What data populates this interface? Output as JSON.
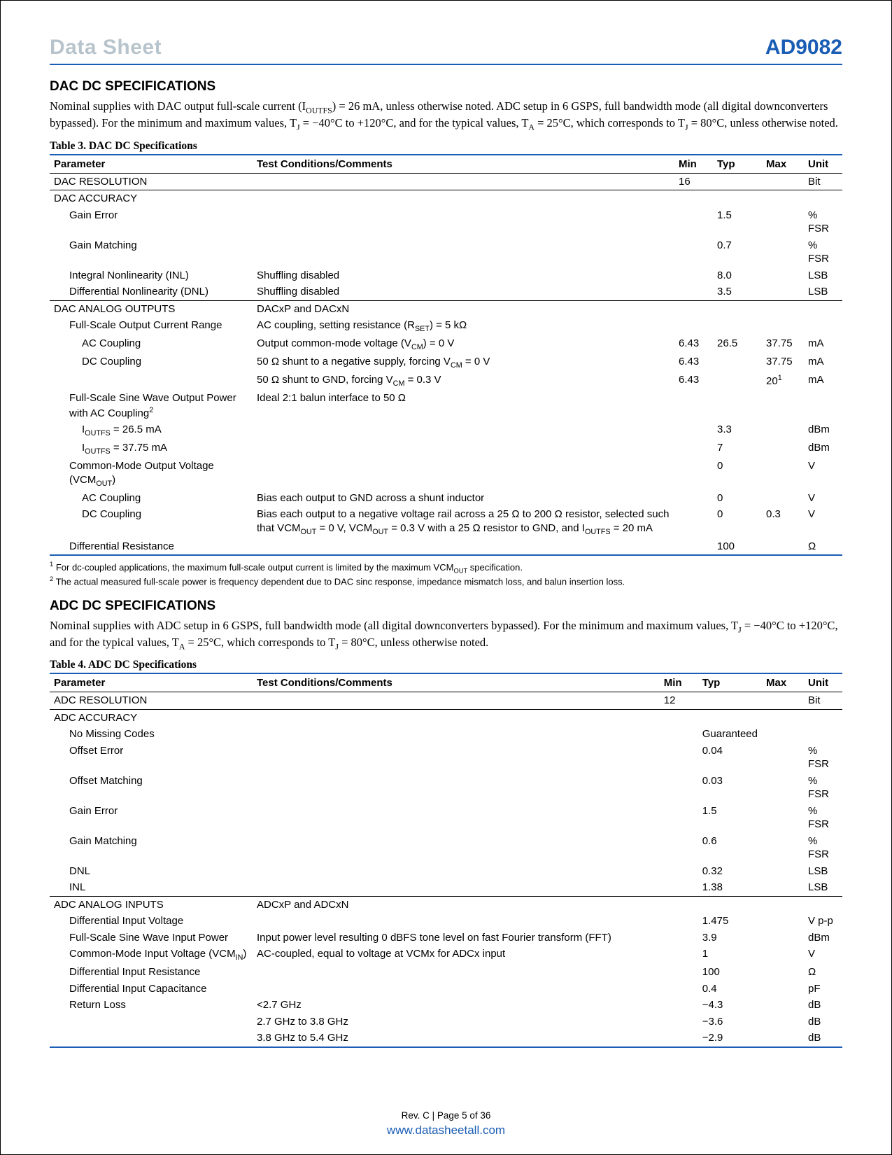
{
  "header": {
    "left": "Data Sheet",
    "right": "AD9082"
  },
  "section1": {
    "title": "DAC DC SPECIFICATIONS",
    "intro_html": "Nominal supplies with DAC output full-scale current (I<span class='sub'>OUTFS</span>) = 26 mA, unless otherwise noted. ADC setup in 6 GSPS, full bandwidth mode (all digital downconverters bypassed). For the minimum and maximum values, T<span class='sub'>J</span> = −40°C to +120°C, and for the typical values, T<span class='sub'>A</span> = 25°C, which corresponds to T<span class='sub'>J</span> = 80°C, unless otherwise noted.",
    "table_title": "Table 3. DAC DC Specifications",
    "columns": [
      "Parameter",
      "Test Conditions/Comments",
      "Min",
      "Typ",
      "Max",
      "Unit"
    ],
    "rows": [
      {
        "sep": true,
        "param": "DAC RESOLUTION",
        "cond": "",
        "min": "16",
        "typ": "",
        "max": "",
        "unit": "Bit",
        "ind": 0
      },
      {
        "sep": true,
        "param": "DAC ACCURACY",
        "cond": "",
        "min": "",
        "typ": "",
        "max": "",
        "unit": "",
        "ind": 0
      },
      {
        "param": "Gain Error",
        "cond": "",
        "min": "",
        "typ": "1.5",
        "max": "",
        "unit": "% FSR",
        "ind": 1
      },
      {
        "param": "Gain Matching",
        "cond": "",
        "min": "",
        "typ": "0.7",
        "max": "",
        "unit": "% FSR",
        "ind": 1
      },
      {
        "param": "Integral Nonlinearity (INL)",
        "cond": "Shuffling disabled",
        "min": "",
        "typ": "8.0",
        "max": "",
        "unit": "LSB",
        "ind": 1
      },
      {
        "param": "Differential Nonlinearity (DNL)",
        "cond": "Shuffling disabled",
        "min": "",
        "typ": "3.5",
        "max": "",
        "unit": "LSB",
        "ind": 1
      },
      {
        "sep": true,
        "param": "DAC ANALOG OUTPUTS",
        "cond": "DACxP and DACxN",
        "min": "",
        "typ": "",
        "max": "",
        "unit": "",
        "ind": 0
      },
      {
        "param": "Full-Scale Output Current Range",
        "cond_html": "AC coupling, setting resistance (R<span class='sub'>SET</span>) = 5 kΩ",
        "min": "",
        "typ": "",
        "max": "",
        "unit": "",
        "ind": 1
      },
      {
        "param": "AC Coupling",
        "cond_html": "Output common-mode voltage (V<span class='sub'>CM</span>) = 0 V",
        "min": "6.43",
        "typ": "26.5",
        "max": "37.75",
        "unit": "mA",
        "ind": 2
      },
      {
        "param": "DC Coupling",
        "cond_html": "50 Ω shunt to a negative supply, forcing V<span class='sub'>CM</span> = 0 V",
        "min": "6.43",
        "typ": "",
        "max": "37.75",
        "unit": "mA",
        "ind": 2
      },
      {
        "param": "",
        "cond_html": "50 Ω shunt to GND, forcing V<span class='sub'>CM</span> = 0.3 V",
        "min": "6.43",
        "typ": "",
        "max_html": "20<span class='sup'>1</span>",
        "unit": "mA",
        "ind": 2
      },
      {
        "param_html": "Full-Scale Sine Wave Output Power with AC Coupling<span class='sup'>2</span>",
        "cond": "Ideal 2:1 balun interface to 50 Ω",
        "min": "",
        "typ": "",
        "max": "",
        "unit": "",
        "ind": 1
      },
      {
        "param_html": "I<span class='sub'>OUTFS</span> = 26.5 mA",
        "cond": "",
        "min": "",
        "typ": "3.3",
        "max": "",
        "unit": "dBm",
        "ind": 2
      },
      {
        "param_html": "I<span class='sub'>OUTFS</span> = 37.75 mA",
        "cond": "",
        "min": "",
        "typ": "7",
        "max": "",
        "unit": "dBm",
        "ind": 2
      },
      {
        "param_html": "Common-Mode Output Voltage (VCM<span class='sub'>OUT</span>)",
        "cond": "",
        "min": "",
        "typ": "0",
        "max": "",
        "unit": "V",
        "ind": 1
      },
      {
        "param": "AC Coupling",
        "cond": "Bias each output to GND across a shunt inductor",
        "min": "",
        "typ": "0",
        "max": "",
        "unit": "V",
        "ind": 2
      },
      {
        "param": "DC Coupling",
        "cond_html": "Bias each output to a negative voltage rail across a 25 Ω to 200 Ω resistor, selected such that VCM<span class='sub'>OUT</span> = 0 V, VCM<span class='sub'>OUT</span> = 0.3 V with a 25 Ω resistor to GND, and I<span class='sub'>OUTFS</span> = 20 mA",
        "min": "",
        "typ": "0",
        "max": "0.3",
        "unit": "V",
        "ind": 2
      },
      {
        "param": "Differential Resistance",
        "cond": "",
        "min": "",
        "typ": "100",
        "max": "",
        "unit": "Ω",
        "ind": 1
      }
    ],
    "footnotes": [
      {
        "idx": "1",
        "text_html": "For dc-coupled applications, the maximum full-scale output current is limited by the maximum VCM<span class='sub'>OUT</span> specification."
      },
      {
        "idx": "2",
        "text_html": "The actual measured full-scale power is frequency dependent due to DAC sinc response, impedance mismatch loss, and balun insertion loss."
      }
    ]
  },
  "section2": {
    "title": "ADC DC SPECIFICATIONS",
    "intro_html": "Nominal supplies with ADC setup in 6 GSPS, full bandwidth mode (all digital downconverters bypassed). For the minimum and maximum values, T<span class='sub'>J</span> = −40°C to +120°C, and for the typical values, T<span class='sub'>A</span> = 25°C, which corresponds to T<span class='sub'>J</span> = 80°C, unless otherwise noted.",
    "table_title": "Table 4. ADC DC Specifications",
    "columns": [
      "Parameter",
      "Test Conditions/Comments",
      "Min",
      "Typ",
      "Max",
      "Unit"
    ],
    "rows": [
      {
        "sep": true,
        "param": "ADC RESOLUTION",
        "cond": "",
        "min": "12",
        "typ": "",
        "max": "",
        "unit": "Bit",
        "ind": 0
      },
      {
        "sep": true,
        "param": "ADC ACCURACY",
        "cond": "",
        "min": "",
        "typ": "",
        "max": "",
        "unit": "",
        "ind": 0
      },
      {
        "param": "No Missing Codes",
        "cond": "",
        "min": "",
        "typ": "Guaranteed",
        "max": "",
        "unit": "",
        "ind": 1
      },
      {
        "param": "Offset Error",
        "cond": "",
        "min": "",
        "typ": "0.04",
        "max": "",
        "unit": "% FSR",
        "ind": 1
      },
      {
        "param": "Offset Matching",
        "cond": "",
        "min": "",
        "typ": "0.03",
        "max": "",
        "unit": "% FSR",
        "ind": 1
      },
      {
        "param": "Gain Error",
        "cond": "",
        "min": "",
        "typ": "1.5",
        "max": "",
        "unit": "% FSR",
        "ind": 1
      },
      {
        "param": "Gain Matching",
        "cond": "",
        "min": "",
        "typ": "0.6",
        "max": "",
        "unit": "% FSR",
        "ind": 1
      },
      {
        "param": "DNL",
        "cond": "",
        "min": "",
        "typ": "0.32",
        "max": "",
        "unit": "LSB",
        "ind": 1
      },
      {
        "param": "INL",
        "cond": "",
        "min": "",
        "typ": "1.38",
        "max": "",
        "unit": "LSB",
        "ind": 1
      },
      {
        "sep": true,
        "param": "ADC ANALOG INPUTS",
        "cond": "ADCxP and ADCxN",
        "min": "",
        "typ": "",
        "max": "",
        "unit": "",
        "ind": 0
      },
      {
        "param": "Differential Input Voltage",
        "cond": "",
        "min": "",
        "typ": "1.475",
        "max": "",
        "unit": "V p-p",
        "ind": 1
      },
      {
        "param": "Full-Scale Sine Wave Input Power",
        "cond": "Input power level resulting 0 dBFS tone level on fast Fourier transform (FFT)",
        "min": "",
        "typ": "3.9",
        "max": "",
        "unit": "dBm",
        "ind": 1
      },
      {
        "param_html": "Common-Mode Input Voltage (VCM<span class='sub'>IN</span>)",
        "cond": "AC-coupled, equal to voltage at VCMx for ADCx input",
        "min": "",
        "typ": "1",
        "max": "",
        "unit": "V",
        "ind": 1
      },
      {
        "param": "Differential Input Resistance",
        "cond": "",
        "min": "",
        "typ": "100",
        "max": "",
        "unit": "Ω",
        "ind": 1
      },
      {
        "param": "Differential Input Capacitance",
        "cond": "",
        "min": "",
        "typ": "0.4",
        "max": "",
        "unit": "pF",
        "ind": 1
      },
      {
        "param": "Return Loss",
        "cond": "<2.7 GHz",
        "min": "",
        "typ": "−4.3",
        "max": "",
        "unit": "dB",
        "ind": 1
      },
      {
        "param": "",
        "cond": "2.7 GHz to 3.8 GHz",
        "min": "",
        "typ": "−3.6",
        "max": "",
        "unit": "dB",
        "ind": 1
      },
      {
        "param": "",
        "cond": "3.8 GHz to 5.4 GHz",
        "min": "",
        "typ": "−2.9",
        "max": "",
        "unit": "dB",
        "ind": 1
      }
    ]
  },
  "footer": {
    "rev": "Rev. C | Page 5 of 36",
    "url": "www.datasheetall.com"
  }
}
